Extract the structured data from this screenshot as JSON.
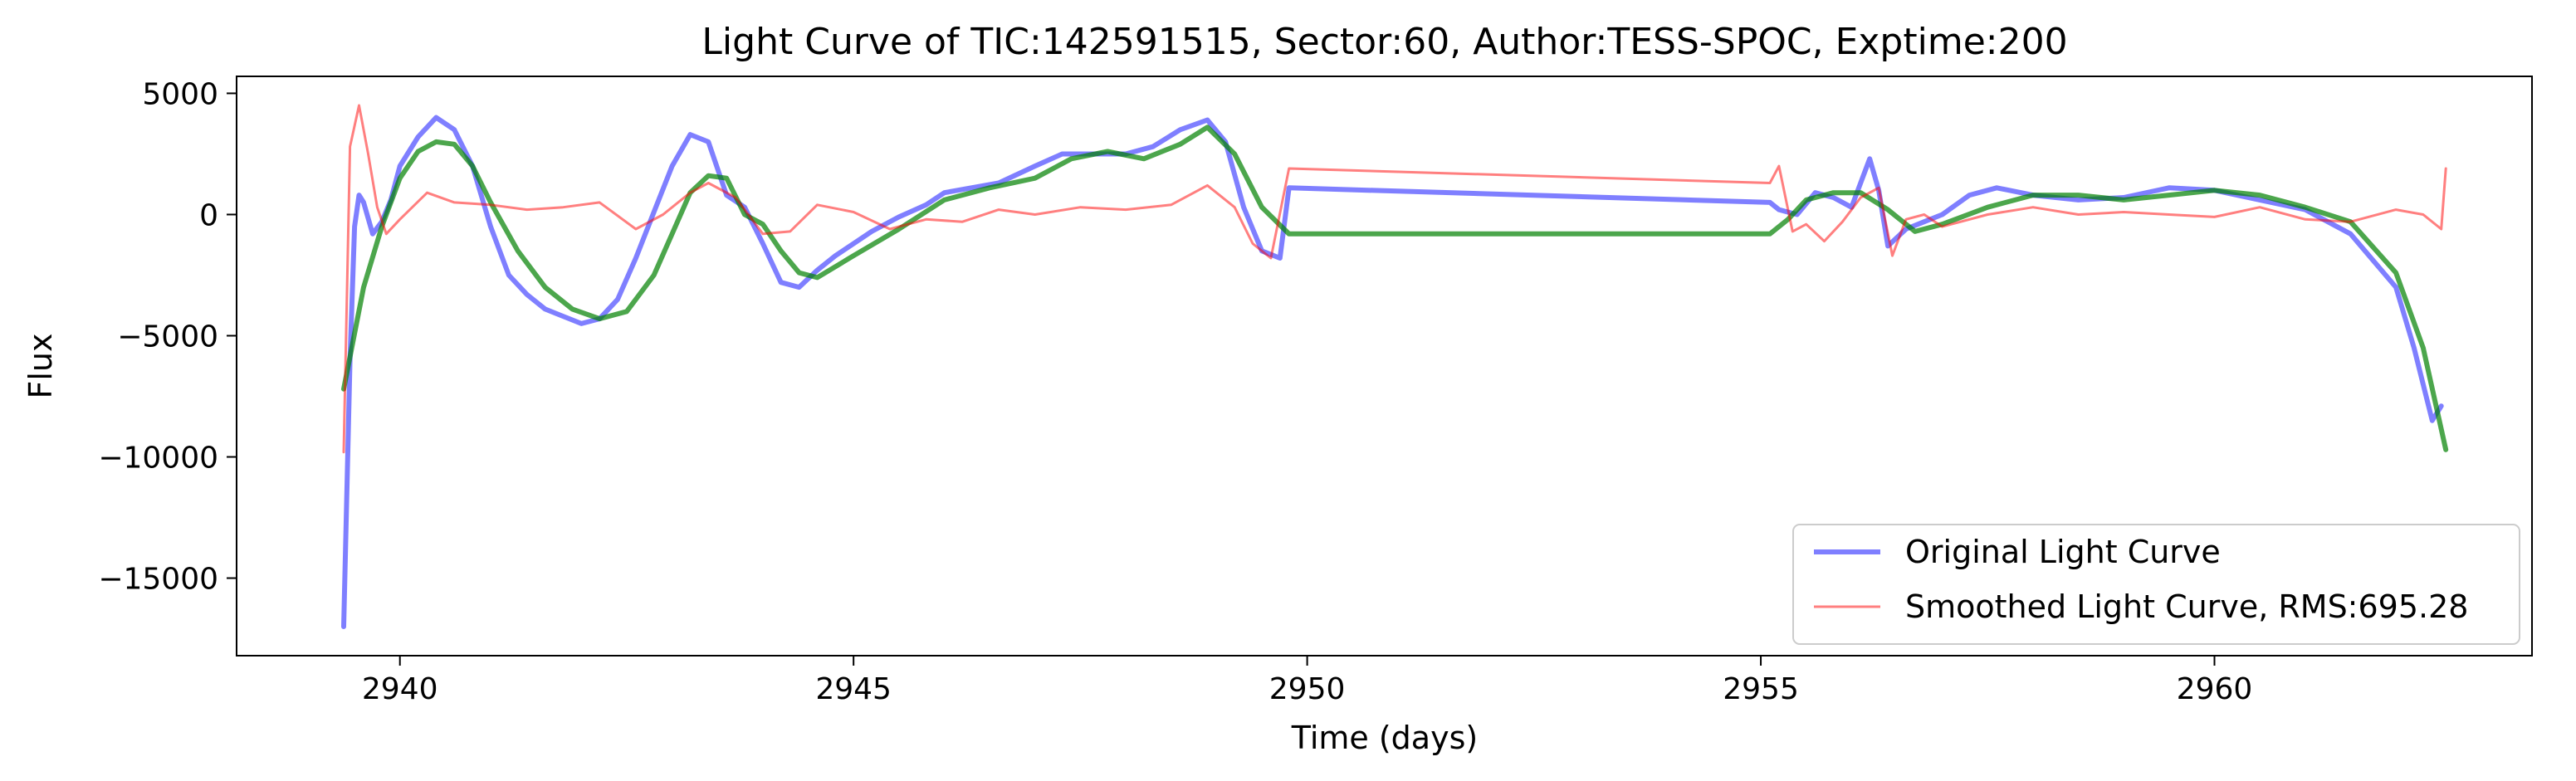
{
  "chart_data": {
    "type": "line",
    "title": "Light Curve of TIC:142591515, Sector:60, Author:TESS-SPOC, Exptime:200",
    "xlabel": "Time (days)",
    "ylabel": "Flux",
    "xlim": [
      2938.2,
      2963.5
    ],
    "ylim": [
      -18200,
      5700
    ],
    "xticks": [
      2940,
      2945,
      2950,
      2955,
      2960
    ],
    "xtick_labels": [
      "2940",
      "2945",
      "2950",
      "2955",
      "2960"
    ],
    "yticks": [
      5000,
      0,
      -5000,
      -10000,
      -15000
    ],
    "ytick_labels": [
      "5000",
      "0",
      "−5000",
      "−10000",
      "−15000"
    ],
    "grid": false,
    "legend_position": "lower-right",
    "series": [
      {
        "name": "Original Light Curve",
        "color": "#0000ff",
        "opacity": 0.5,
        "legend": true,
        "x": [
          2939.38,
          2939.45,
          2939.5,
          2939.55,
          2939.6,
          2939.7,
          2939.8,
          2939.9,
          2940.0,
          2940.2,
          2940.4,
          2940.6,
          2940.8,
          2941.0,
          2941.2,
          2941.4,
          2941.6,
          2941.8,
          2942.0,
          2942.2,
          2942.4,
          2942.6,
          2942.8,
          2943.0,
          2943.2,
          2943.4,
          2943.6,
          2943.8,
          2944.0,
          2944.2,
          2944.4,
          2944.6,
          2944.8,
          2945.0,
          2945.2,
          2945.5,
          2945.8,
          2946.0,
          2946.3,
          2946.6,
          2947.0,
          2947.3,
          2947.6,
          2948.0,
          2948.3,
          2948.6,
          2948.9,
          2949.1,
          2949.3,
          2949.5,
          2949.7,
          2949.8,
          2955.1,
          2955.2,
          2955.4,
          2955.6,
          2955.8,
          2956.0,
          2956.2,
          2956.3,
          2956.4,
          2956.6,
          2956.8,
          2957.0,
          2957.3,
          2957.6,
          2958.0,
          2958.5,
          2959.0,
          2959.5,
          2960.0,
          2960.5,
          2961.0,
          2961.5,
          2962.0,
          2962.2,
          2962.4,
          2962.5
        ],
        "y": [
          -17000,
          -6000,
          -500,
          800,
          500,
          -800,
          -300,
          600,
          2000,
          3200,
          4000,
          3500,
          2000,
          -500,
          -2500,
          -3300,
          -3900,
          -4200,
          -4500,
          -4300,
          -3500,
          -1800,
          100,
          2000,
          3300,
          3000,
          800,
          300,
          -1200,
          -2800,
          -3000,
          -2300,
          -1700,
          -1200,
          -700,
          -100,
          400,
          900,
          1100,
          1300,
          2000,
          2500,
          2500,
          2500,
          2800,
          3500,
          3900,
          3000,
          300,
          -1500,
          -1800,
          1100,
          500,
          200,
          0,
          900,
          700,
          300,
          2300,
          1000,
          -1300,
          -600,
          -300,
          0,
          800,
          1100,
          800,
          600,
          700,
          1100,
          1000,
          600,
          200,
          -800,
          -3000,
          -5500,
          -8500,
          -7900
        ]
      },
      {
        "name": "Smoothed Light Curve, RMS:695.28",
        "color": "#ff0000",
        "opacity": 0.5,
        "legend": true,
        "x": [
          2939.38,
          2939.45,
          2939.55,
          2939.65,
          2939.75,
          2939.85,
          2940.0,
          2940.3,
          2940.6,
          2941.0,
          2941.4,
          2941.8,
          2942.2,
          2942.6,
          2942.9,
          2943.2,
          2943.4,
          2943.7,
          2944.0,
          2944.3,
          2944.6,
          2945.0,
          2945.4,
          2945.8,
          2946.2,
          2946.6,
          2947.0,
          2947.5,
          2948.0,
          2948.5,
          2948.9,
          2949.2,
          2949.4,
          2949.6,
          2949.8,
          2955.1,
          2955.2,
          2955.35,
          2955.5,
          2955.7,
          2955.9,
          2956.1,
          2956.3,
          2956.45,
          2956.6,
          2956.8,
          2957.0,
          2957.5,
          2958.0,
          2958.5,
          2959.0,
          2959.5,
          2960.0,
          2960.5,
          2961.0,
          2961.5,
          2962.0,
          2962.3,
          2962.5,
          2962.55
        ],
        "y": [
          -9800,
          2800,
          4500,
          2500,
          300,
          -800,
          -200,
          900,
          500,
          400,
          200,
          300,
          500,
          -600,
          0,
          900,
          1300,
          700,
          -800,
          -700,
          400,
          100,
          -600,
          -200,
          -300,
          200,
          0,
          300,
          200,
          400,
          1200,
          300,
          -1200,
          -1800,
          1900,
          1300,
          2000,
          -700,
          -400,
          -1100,
          -300,
          700,
          1100,
          -1700,
          -200,
          0,
          -500,
          0,
          300,
          0,
          100,
          0,
          -100,
          300,
          -200,
          -300,
          200,
          0,
          -600,
          1900
        ]
      },
      {
        "name": "",
        "color": "#008000",
        "opacity": 0.7,
        "legend": false,
        "x": [
          2939.38,
          2939.6,
          2939.8,
          2940.0,
          2940.2,
          2940.4,
          2940.6,
          2940.8,
          2941.0,
          2941.3,
          2941.6,
          2941.9,
          2942.2,
          2942.5,
          2942.8,
          2943.0,
          2943.2,
          2943.4,
          2943.6,
          2943.8,
          2944.0,
          2944.2,
          2944.4,
          2944.6,
          2945.0,
          2945.5,
          2946.0,
          2946.5,
          2947.0,
          2947.4,
          2947.8,
          2948.2,
          2948.6,
          2948.9,
          2949.2,
          2949.5,
          2949.8,
          2955.1,
          2955.3,
          2955.5,
          2955.8,
          2956.1,
          2956.4,
          2956.7,
          2957.0,
          2957.5,
          2958.0,
          2958.5,
          2959.0,
          2959.5,
          2960.0,
          2960.5,
          2961.0,
          2961.5,
          2962.0,
          2962.3,
          2962.55
        ],
        "y": [
          -7200,
          -3000,
          -500,
          1500,
          2600,
          3000,
          2900,
          2000,
          500,
          -1500,
          -3000,
          -3900,
          -4300,
          -4000,
          -2500,
          -800,
          900,
          1600,
          1500,
          0,
          -400,
          -1500,
          -2400,
          -2600,
          -1700,
          -600,
          600,
          1100,
          1500,
          2300,
          2600,
          2300,
          2900,
          3600,
          2500,
          300,
          -800,
          -800,
          -200,
          600,
          900,
          900,
          200,
          -700,
          -400,
          300,
          800,
          800,
          600,
          800,
          1000,
          800,
          300,
          -300,
          -2400,
          -5500,
          -9700
        ]
      }
    ]
  }
}
